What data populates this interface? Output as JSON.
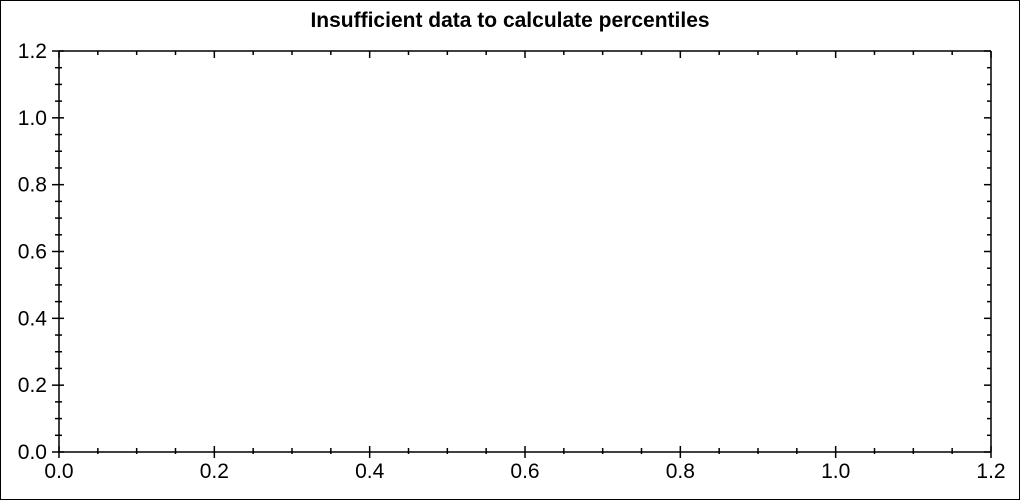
{
  "page": {
    "background": "#ffffff",
    "border_color": "#000000"
  },
  "chart_data": {
    "type": "scatter",
    "title": "Insufficient data to calculate percentiles",
    "series": [],
    "xlabel": "",
    "ylabel": "",
    "xlim": [
      0.0,
      1.2
    ],
    "ylim": [
      0.0,
      1.2
    ],
    "x_tick_labels": [
      "0.0",
      "0.2",
      "0.4",
      "0.6",
      "0.8",
      "1.0",
      "1.2"
    ],
    "y_tick_labels": [
      "0.0",
      "0.2",
      "0.4",
      "0.6",
      "0.8",
      "1.0",
      "1.2"
    ],
    "minor_ticks_between_majors": 3,
    "grid": false,
    "legend_position": "none",
    "axis_color": "#000000",
    "text_color": "#000000",
    "tick_style": {
      "left": "cross",
      "bottom": "cross",
      "top": "inward",
      "right": "inward"
    }
  }
}
